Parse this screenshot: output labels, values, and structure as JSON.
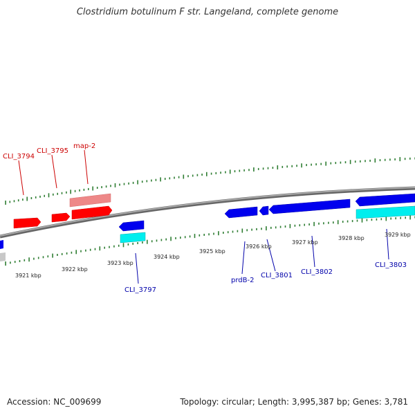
{
  "title": "Clostridium botulinum F str. Langeland, complete genome",
  "footer": {
    "accession": "Accession: NC_009699",
    "topology": "Topology: circular; Length: 3,995,387 bp; Genes: 3,781"
  },
  "colors": {
    "backbone": "#808080",
    "tick": "#2e7d32",
    "forward_gene": "#ff0000",
    "forward_gene_light": "#ee8888",
    "reverse_gene": "#0000ee",
    "reverse_gene_light": "#00eeee",
    "forward_label": "#cc0000",
    "reverse_label": "#0000aa",
    "kbp_label": "#222222"
  },
  "scale_labels": [
    "3921 kbp",
    "3922 kbp",
    "3923 kbp",
    "3924 kbp",
    "3925 kbp",
    "3926 kbp",
    "3927 kbp",
    "3928 kbp",
    "3929 kbp"
  ],
  "forward_gene_labels": [
    "CLI_3794",
    "CLI_3795",
    "map-2"
  ],
  "reverse_gene_labels": [
    "CLI_3797",
    "prdB-2",
    "CLI_3801",
    "CLI_3802",
    "CLI_3803"
  ]
}
